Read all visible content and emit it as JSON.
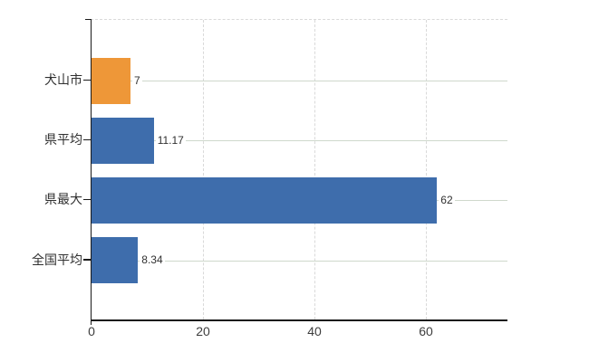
{
  "chart_data": {
    "type": "bar",
    "orientation": "horizontal",
    "title": "",
    "categories": [
      "犬山市",
      "県平均",
      "県最大",
      "全国平均"
    ],
    "values": [
      7,
      11.17,
      62,
      8.34
    ],
    "value_labels": [
      "7",
      "11.17",
      "62",
      "8.34"
    ],
    "bar_colors": [
      "#EE9738",
      "#3E6DAC",
      "#3E6DAC",
      "#3E6DAC"
    ],
    "highlight_color": "#EE9738",
    "base_color": "#3E6DAC",
    "x_ticks": [
      "0",
      "20",
      "40",
      "60"
    ],
    "x_tick_values": [
      0,
      20,
      40,
      60
    ],
    "xlim": [
      0,
      74.6
    ],
    "xlabel": "",
    "ylabel": "",
    "legend": "none",
    "grid": {
      "horizontal": true,
      "horizontal_color": "#CFD8CC",
      "horizontal_style": "solid",
      "vertical": true,
      "vertical_color": "#D9D9D9",
      "vertical_style": "dashed",
      "top_border_style": "dashed"
    },
    "background_color": "#FFFFFF",
    "axis_color": "#1A1A1A"
  }
}
